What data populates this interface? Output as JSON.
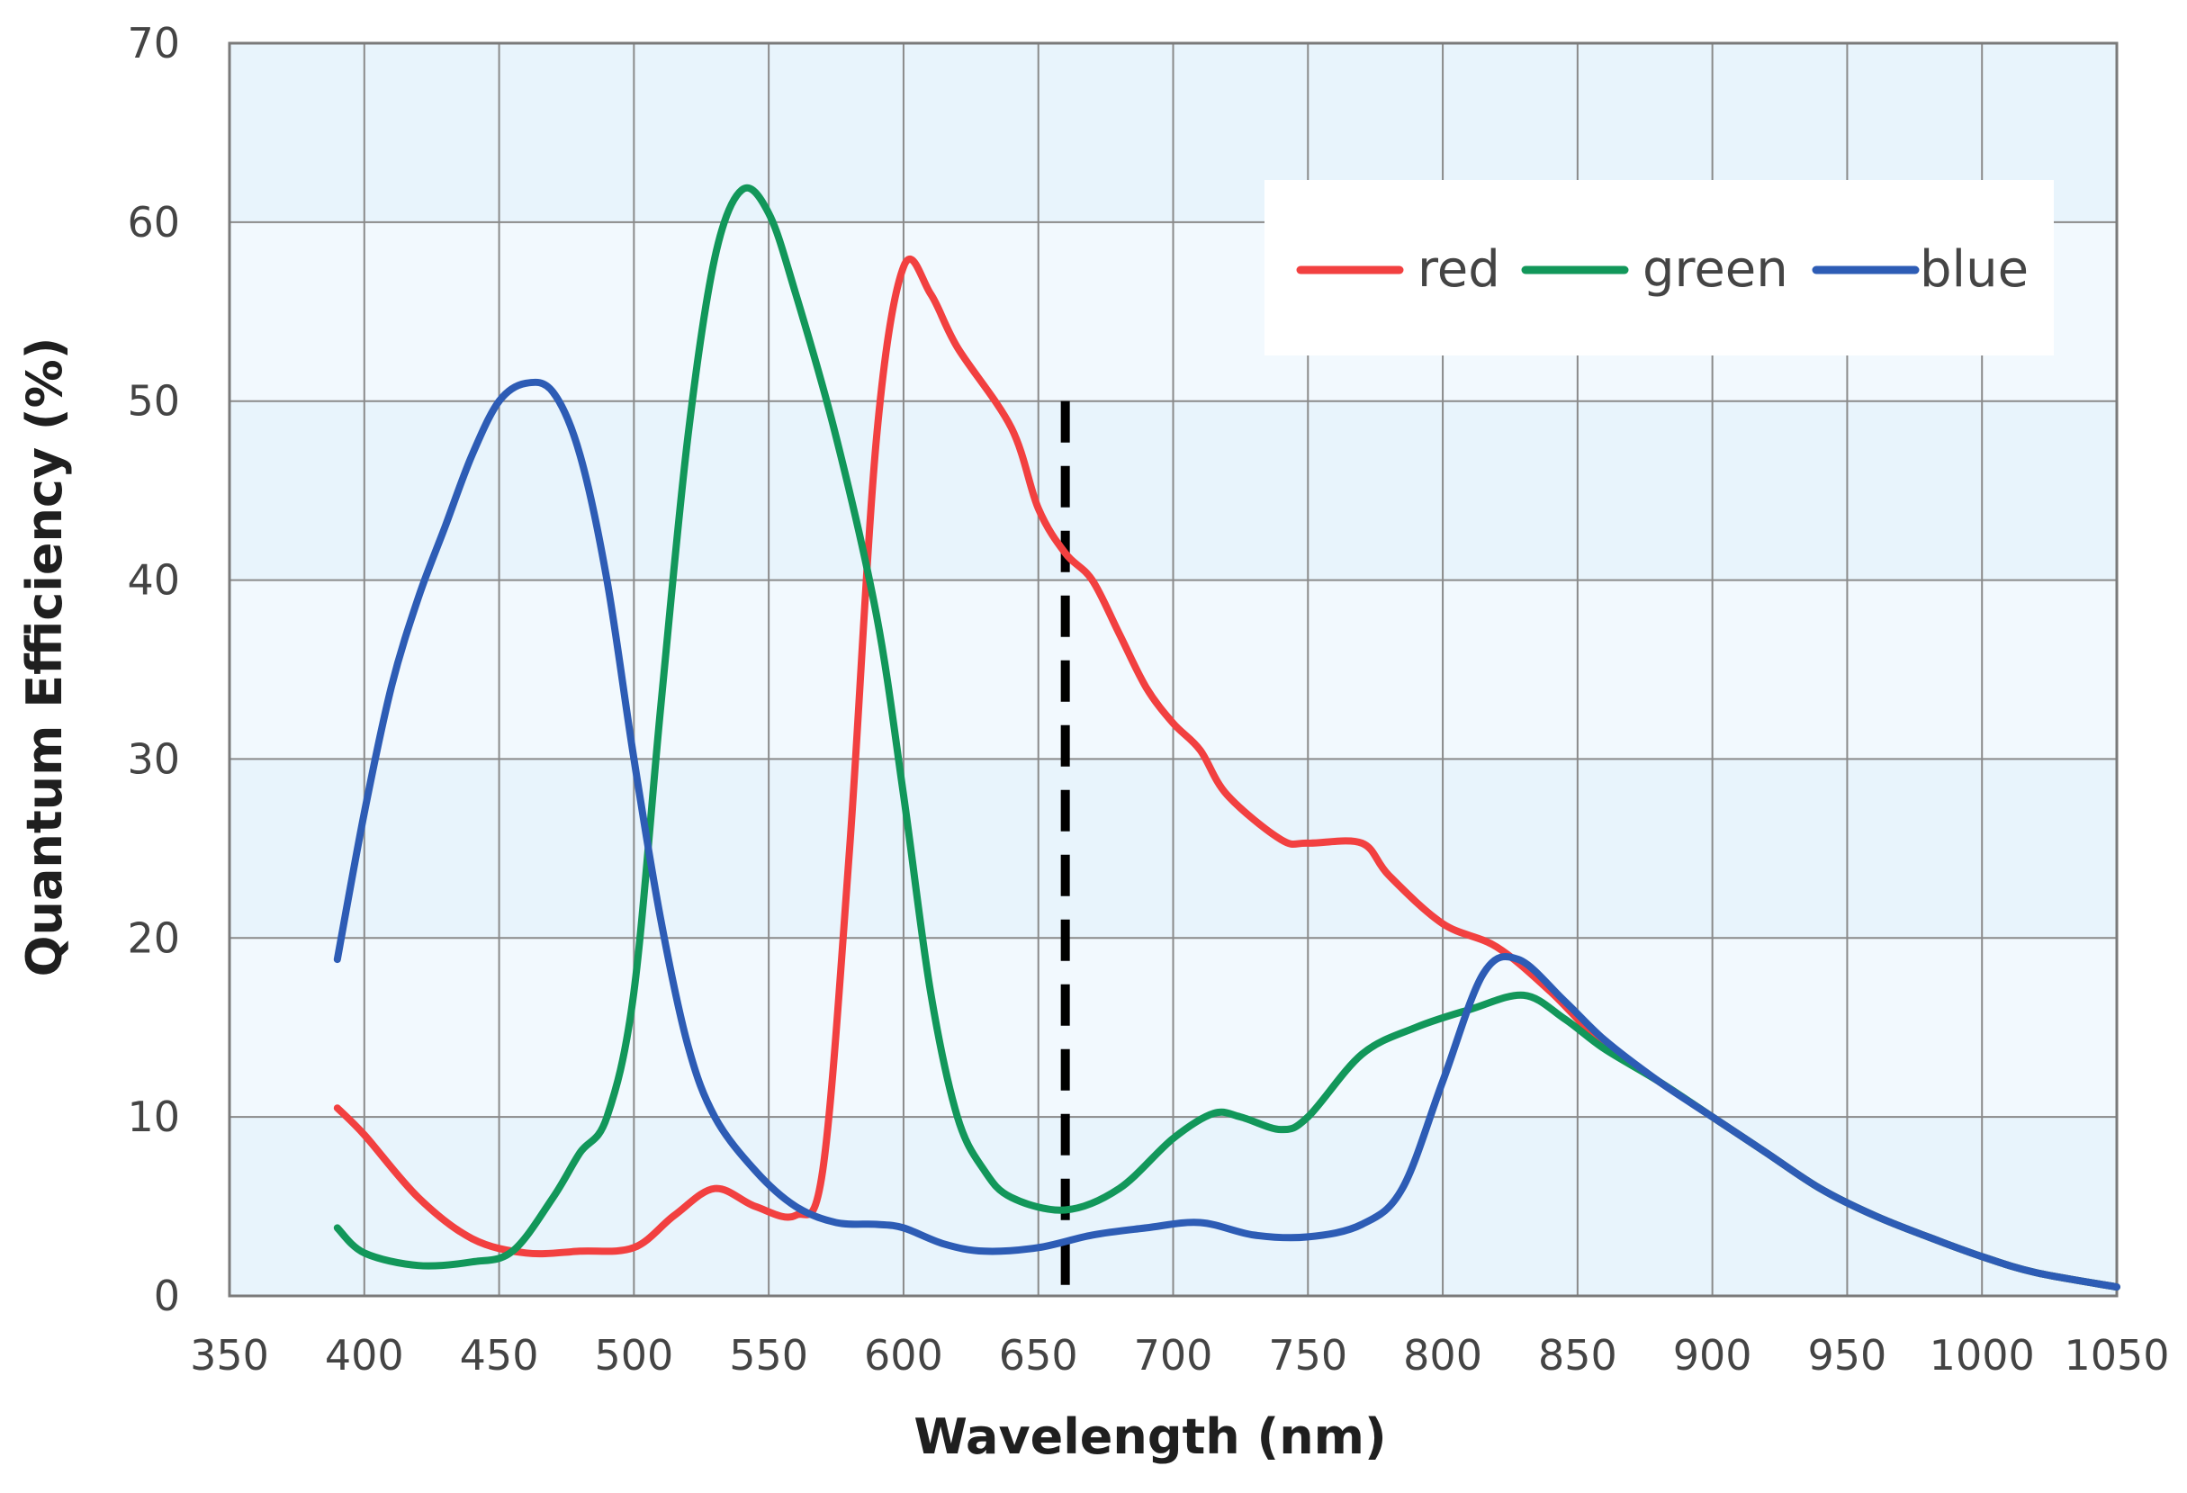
{
  "chart_data": {
    "type": "line",
    "title": "",
    "xlabel": "Wavelength (nm)",
    "ylabel": "Quantum Efficiency (%)",
    "xlim": [
      350,
      1050
    ],
    "ylim": [
      0,
      70
    ],
    "xticks": [
      350,
      400,
      450,
      500,
      550,
      600,
      650,
      700,
      750,
      800,
      850,
      900,
      950,
      1000,
      1050
    ],
    "yticks": [
      0,
      10,
      20,
      30,
      40,
      50,
      60,
      70
    ],
    "grid": true,
    "legend_position": "top-right",
    "marker_line": {
      "x": 660,
      "y_from": 0,
      "y_to": 50,
      "style": "dashed"
    },
    "series": [
      {
        "name": "red",
        "color": "#f24040",
        "points": [
          [
            390,
            10.5
          ],
          [
            400,
            9
          ],
          [
            420,
            5.5
          ],
          [
            440,
            3.2
          ],
          [
            460,
            2.4
          ],
          [
            480,
            2.5
          ],
          [
            500,
            2.7
          ],
          [
            515,
            4.5
          ],
          [
            530,
            6
          ],
          [
            545,
            5
          ],
          [
            560,
            4.5
          ],
          [
            570,
            7
          ],
          [
            580,
            25
          ],
          [
            590,
            48
          ],
          [
            600,
            57.5
          ],
          [
            610,
            56
          ],
          [
            620,
            53
          ],
          [
            640,
            48.5
          ],
          [
            650,
            44
          ],
          [
            660,
            41.5
          ],
          [
            670,
            40
          ],
          [
            680,
            37
          ],
          [
            690,
            34
          ],
          [
            700,
            32
          ],
          [
            710,
            30.5
          ],
          [
            720,
            28
          ],
          [
            740,
            25.5
          ],
          [
            750,
            25.3
          ],
          [
            770,
            25.3
          ],
          [
            780,
            23.5
          ],
          [
            800,
            20.8
          ],
          [
            820,
            19.5
          ],
          [
            840,
            17
          ],
          [
            860,
            14
          ],
          [
            880,
            12
          ],
          [
            900,
            10
          ],
          [
            920,
            8
          ],
          [
            940,
            6
          ],
          [
            960,
            4.5
          ],
          [
            980,
            3.3
          ],
          [
            1000,
            2.2
          ],
          [
            1020,
            1.3
          ],
          [
            1050,
            0.5
          ]
        ]
      },
      {
        "name": "green",
        "color": "#12975a",
        "points": [
          [
            390,
            3.8
          ],
          [
            400,
            2.4
          ],
          [
            420,
            1.7
          ],
          [
            440,
            1.9
          ],
          [
            455,
            2.5
          ],
          [
            470,
            5.5
          ],
          [
            480,
            8
          ],
          [
            490,
            10
          ],
          [
            500,
            17
          ],
          [
            510,
            33
          ],
          [
            520,
            48
          ],
          [
            530,
            58
          ],
          [
            540,
            61.8
          ],
          [
            550,
            60.5
          ],
          [
            560,
            56
          ],
          [
            575,
            48
          ],
          [
            590,
            38
          ],
          [
            600,
            28
          ],
          [
            610,
            17
          ],
          [
            620,
            10
          ],
          [
            630,
            7
          ],
          [
            640,
            5.5
          ],
          [
            660,
            4.8
          ],
          [
            680,
            6
          ],
          [
            700,
            8.8
          ],
          [
            715,
            10.2
          ],
          [
            725,
            10
          ],
          [
            740,
            9.3
          ],
          [
            750,
            10
          ],
          [
            770,
            13.5
          ],
          [
            790,
            15
          ],
          [
            810,
            16
          ],
          [
            830,
            16.8
          ],
          [
            845,
            15.5
          ],
          [
            860,
            13.8
          ],
          [
            880,
            12
          ],
          [
            900,
            10
          ],
          [
            920,
            8
          ],
          [
            940,
            6
          ],
          [
            960,
            4.5
          ],
          [
            980,
            3.3
          ],
          [
            1000,
            2.2
          ],
          [
            1020,
            1.3
          ],
          [
            1050,
            0.5
          ]
        ]
      },
      {
        "name": "blue",
        "color": "#2d5cb5",
        "points": [
          [
            390,
            18.8
          ],
          [
            400,
            27
          ],
          [
            410,
            34
          ],
          [
            420,
            39
          ],
          [
            430,
            43
          ],
          [
            440,
            47
          ],
          [
            450,
            50
          ],
          [
            460,
            51
          ],
          [
            470,
            50.5
          ],
          [
            480,
            47
          ],
          [
            490,
            40
          ],
          [
            500,
            30
          ],
          [
            510,
            21
          ],
          [
            520,
            14
          ],
          [
            530,
            10
          ],
          [
            545,
            7
          ],
          [
            560,
            5
          ],
          [
            575,
            4.1
          ],
          [
            590,
            4
          ],
          [
            600,
            3.8
          ],
          [
            615,
            2.9
          ],
          [
            630,
            2.5
          ],
          [
            650,
            2.7
          ],
          [
            670,
            3.4
          ],
          [
            690,
            3.8
          ],
          [
            710,
            4.1
          ],
          [
            730,
            3.4
          ],
          [
            750,
            3.3
          ],
          [
            770,
            4
          ],
          [
            785,
            6
          ],
          [
            800,
            12
          ],
          [
            815,
            18
          ],
          [
            828,
            18.8
          ],
          [
            845,
            16.5
          ],
          [
            860,
            14.3
          ],
          [
            880,
            12
          ],
          [
            900,
            10
          ],
          [
            920,
            8
          ],
          [
            940,
            6
          ],
          [
            960,
            4.5
          ],
          [
            980,
            3.3
          ],
          [
            1000,
            2.2
          ],
          [
            1020,
            1.3
          ],
          [
            1050,
            0.5
          ]
        ]
      }
    ]
  }
}
